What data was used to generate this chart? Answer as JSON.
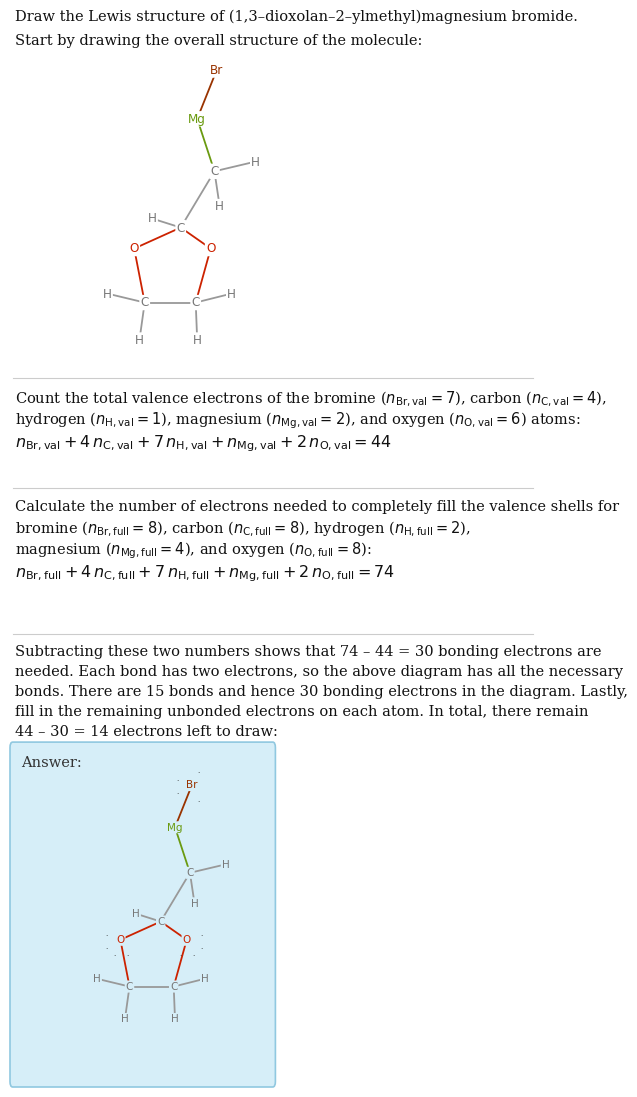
{
  "bg_color": "#ffffff",
  "answer_bg": "#d6eef8",
  "answer_border": "#90c8e0",
  "atom_color_C": "#777777",
  "atom_color_H": "#777777",
  "atom_color_O": "#cc2200",
  "atom_color_Br": "#993300",
  "atom_color_Mg": "#6a9a10",
  "bond_color": "#999999",
  "bond_color_O": "#cc2200",
  "bond_color_Mg": "#6a9a10",
  "bond_color_Br": "#993300",
  "title_line1": "Draw the Lewis structure of (1,3–dioxolan–2–ylmethyl)magnesium bromide.",
  "title_line2": "Start by drawing the overall structure of the molecule:",
  "answer_label": "Answer:"
}
